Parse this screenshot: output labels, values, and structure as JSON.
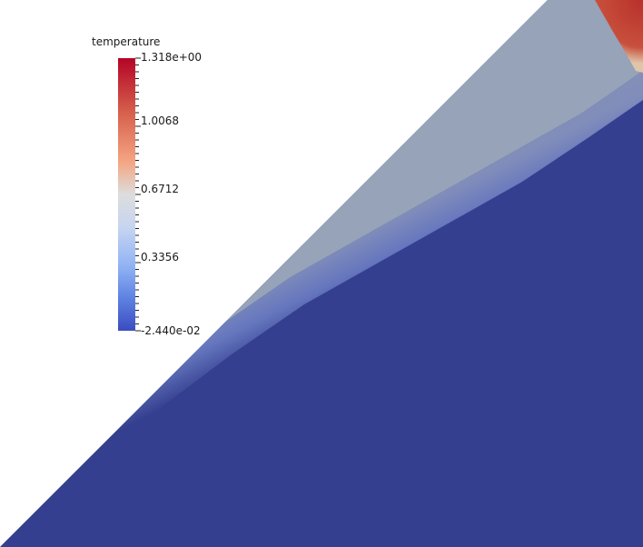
{
  "legend": {
    "title": "temperature",
    "ticks": [
      "1.318e+00",
      "1.0068",
      "0.6712",
      "0.3356",
      "-2.440e-02"
    ],
    "max": 1.318,
    "min": -0.0244
  },
  "colors": {
    "high": "#b40426",
    "mid": "#dddddd",
    "low": "#3b4cc0",
    "hot_region": "#c23b26",
    "warm_band": "#96a3b8",
    "cold_region": "#343f8f",
    "background": "#ffffff"
  }
}
